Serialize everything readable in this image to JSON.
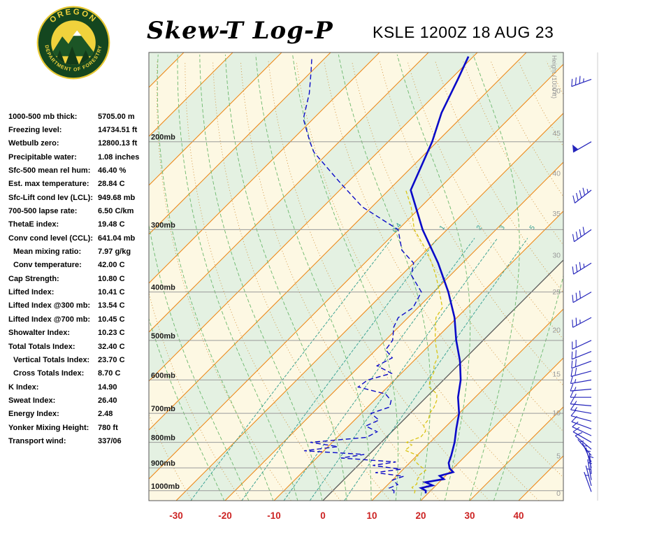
{
  "header": {
    "title": "Skew-T Log-P",
    "station": "KSLE 1200Z 18 AUG 23",
    "logo_text_top": "OREGON",
    "logo_text_bottom": "DEPARTMENT OF FORESTRY"
  },
  "indices": [
    {
      "label": "1000-500 mb thick:",
      "value": "5705.00 m"
    },
    {
      "label": "Freezing level:",
      "value": "14734.51 ft"
    },
    {
      "label": "Wetbulb zero:",
      "value": "12800.13 ft"
    },
    {
      "label": "Precipitable water:",
      "value": "1.08 inches"
    },
    {
      "label": "Sfc-500 mean rel hum:",
      "value": "46.40 %"
    },
    {
      "label": "Est. max temperature:",
      "value": "28.84 C"
    },
    {
      "label": "Sfc-Lift cond lev (LCL):",
      "value": "949.68 mb"
    },
    {
      "label": "700-500 lapse rate:",
      "value": "6.50 C/km"
    },
    {
      "label": "ThetaE index:",
      "value": "19.48 C"
    },
    {
      "label": "Conv cond level (CCL):",
      "value": "641.04 mb"
    },
    {
      "label": "Mean mixing ratio:",
      "value": "7.97 g/kg",
      "indent": true
    },
    {
      "label": "Conv temperature:",
      "value": "42.00 C",
      "indent": true
    },
    {
      "label": "Cap Strength:",
      "value": "10.80 C"
    },
    {
      "label": "Lifted Index:",
      "value": "10.41 C"
    },
    {
      "label": "Lifted Index @300 mb:",
      "value": "13.54 C"
    },
    {
      "label": "Lifted Index @700 mb:",
      "value": "10.45 C"
    },
    {
      "label": "Showalter Index:",
      "value": "10.23 C"
    },
    {
      "label": "Total Totals Index:",
      "value": "32.40 C"
    },
    {
      "label": "Vertical Totals Index:",
      "value": "23.70 C",
      "indent": true
    },
    {
      "label": "Cross Totals Index:",
      "value": "8.70 C",
      "indent": true
    },
    {
      "label": "K Index:",
      "value": "14.90"
    },
    {
      "label": "Sweat Index:",
      "value": "26.40"
    },
    {
      "label": "Energy Index:",
      "value": "2.48"
    },
    {
      "label": "Yonker Mixing Height:",
      "value": "780 ft"
    },
    {
      "label": "Transport wind:",
      "value": "337/06"
    }
  ],
  "chart_data": {
    "type": "skew-t-log-p",
    "pressure_levels_mb": [
      200,
      300,
      400,
      500,
      600,
      700,
      800,
      900,
      1000
    ],
    "pressure_label_suffix": "mb",
    "temp_ticks_c": [
      -30,
      -20,
      -10,
      0,
      10,
      20,
      30,
      40
    ],
    "isotherm_step_c": 10,
    "highlight_isotherm_c": 0,
    "dry_adiabat_step_c": 10,
    "moist_adiabat_start_temps_c": [
      -20,
      -15,
      -10,
      -5,
      0,
      5,
      10,
      15,
      20,
      25,
      30,
      35
    ],
    "mixing_ratio_g_kg": [
      0.4,
      1,
      2,
      3,
      5
    ],
    "height_axis": {
      "title": "Height (1000 ft)",
      "ticks": [
        {
          "label": "50",
          "p_mb": 158
        },
        {
          "label": "45",
          "p_mb": 192
        },
        {
          "label": "40",
          "p_mb": 231
        },
        {
          "label": "35",
          "p_mb": 278
        },
        {
          "label": "30",
          "p_mb": 337
        },
        {
          "label": "25",
          "p_mb": 399
        },
        {
          "label": "20",
          "p_mb": 476
        },
        {
          "label": "15",
          "p_mb": 583
        },
        {
          "label": "10",
          "p_mb": 697
        },
        {
          "label": "5",
          "p_mb": 851
        },
        {
          "label": "0",
          "p_mb": 1010
        }
      ]
    },
    "sounding": {
      "temperature_p_t": [
        [
          1012,
          19.5
        ],
        [
          1000,
          19
        ],
        [
          988,
          17.5
        ],
        [
          976,
          19.3
        ],
        [
          962,
          17.2
        ],
        [
          948,
          20.3
        ],
        [
          934,
          18.8
        ],
        [
          918,
          20.8
        ],
        [
          902,
          19.3
        ],
        [
          880,
          18
        ],
        [
          850,
          17
        ],
        [
          800,
          15
        ],
        [
          750,
          12.5
        ],
        [
          700,
          10
        ],
        [
          650,
          6.5
        ],
        [
          600,
          3.5
        ],
        [
          550,
          -0.5
        ],
        [
          500,
          -5.5
        ],
        [
          450,
          -10.5
        ],
        [
          400,
          -17
        ],
        [
          350,
          -25
        ],
        [
          300,
          -35
        ],
        [
          250,
          -45.5
        ],
        [
          200,
          -51
        ],
        [
          175,
          -55
        ],
        [
          150,
          -58.5
        ],
        [
          135,
          -61
        ]
      ],
      "dewpoint_p_t": [
        [
          1012,
          13
        ],
        [
          1000,
          12.5
        ],
        [
          988,
          11
        ],
        [
          972,
          12
        ],
        [
          952,
          10
        ],
        [
          936,
          11.5
        ],
        [
          920,
          5
        ],
        [
          906,
          9.5
        ],
        [
          890,
          3
        ],
        [
          876,
          7
        ],
        [
          860,
          -5
        ],
        [
          846,
          -1
        ],
        [
          832,
          -14
        ],
        [
          816,
          -8
        ],
        [
          800,
          -14.5
        ],
        [
          782,
          -4
        ],
        [
          762,
          -3
        ],
        [
          742,
          -6.5
        ],
        [
          722,
          -5
        ],
        [
          700,
          -8
        ],
        [
          680,
          -5.5
        ],
        [
          660,
          -6.5
        ],
        [
          640,
          -9
        ],
        [
          620,
          -16
        ],
        [
          600,
          -15.5
        ],
        [
          582,
          -12
        ],
        [
          562,
          -16.5
        ],
        [
          542,
          -15
        ],
        [
          522,
          -18
        ],
        [
          500,
          -18.5
        ],
        [
          470,
          -21
        ],
        [
          450,
          -22
        ],
        [
          430,
          -21
        ],
        [
          400,
          -22.5
        ],
        [
          370,
          -28
        ],
        [
          350,
          -30
        ],
        [
          330,
          -35
        ],
        [
          300,
          -40
        ],
        [
          270,
          -52
        ],
        [
          240,
          -62
        ],
        [
          210,
          -73
        ],
        [
          200,
          -76
        ],
        [
          180,
          -82
        ],
        [
          160,
          -86
        ],
        [
          145,
          -90
        ],
        [
          135,
          -93
        ]
      ],
      "wetbulb_p_t": [
        [
          1012,
          17.2
        ],
        [
          1000,
          16.8
        ],
        [
          985,
          15.5
        ],
        [
          970,
          15.8
        ],
        [
          950,
          15
        ],
        [
          930,
          14.5
        ],
        [
          910,
          14.8
        ],
        [
          890,
          12.5
        ],
        [
          870,
          10.5
        ],
        [
          850,
          10.2
        ],
        [
          830,
          6.5
        ],
        [
          810,
          6.8
        ],
        [
          800,
          5.2
        ],
        [
          780,
          7
        ],
        [
          760,
          6.8
        ],
        [
          740,
          5.2
        ],
        [
          720,
          5
        ],
        [
          700,
          4
        ],
        [
          680,
          3.6
        ],
        [
          660,
          2.8
        ],
        [
          640,
          1.5
        ],
        [
          620,
          -1.5
        ],
        [
          600,
          -2.8
        ],
        [
          580,
          -3.5
        ],
        [
          560,
          -5
        ],
        [
          540,
          -5.8
        ],
        [
          520,
          -7.8
        ],
        [
          500,
          -9.8
        ],
        [
          470,
          -12.5
        ],
        [
          450,
          -14.3
        ],
        [
          430,
          -15
        ],
        [
          400,
          -18.8
        ],
        [
          370,
          -23
        ],
        [
          350,
          -26.3
        ],
        [
          330,
          -30
        ],
        [
          300,
          -36.7
        ],
        [
          270,
          -42
        ],
        [
          250,
          -46.5
        ]
      ]
    },
    "winds_p_dir_spd": [
      [
        1005,
        340,
        5
      ],
      [
        978,
        345,
        5
      ],
      [
        952,
        350,
        5
      ],
      [
        926,
        355,
        5
      ],
      [
        900,
        345,
        5
      ],
      [
        876,
        335,
        5
      ],
      [
        850,
        320,
        5
      ],
      [
        826,
        310,
        10
      ],
      [
        800,
        300,
        10
      ],
      [
        776,
        295,
        10
      ],
      [
        752,
        290,
        10
      ],
      [
        726,
        285,
        10
      ],
      [
        700,
        280,
        15
      ],
      [
        676,
        275,
        15
      ],
      [
        650,
        270,
        15
      ],
      [
        626,
        265,
        15
      ],
      [
        600,
        260,
        15
      ],
      [
        576,
        255,
        20
      ],
      [
        550,
        250,
        20
      ],
      [
        526,
        248,
        20
      ],
      [
        500,
        245,
        20
      ],
      [
        450,
        242,
        25
      ],
      [
        400,
        240,
        30
      ],
      [
        350,
        238,
        35
      ],
      [
        300,
        235,
        40
      ],
      [
        250,
        232,
        45
      ],
      [
        200,
        240,
        50
      ],
      [
        150,
        250,
        35
      ]
    ],
    "colors": {
      "isotherm": "#ee8512",
      "isotherm_zero": "#555555",
      "dry_adiabat": "#d1913c",
      "moist_adiabat": "#6cb86c",
      "mixing_ratio": "#2e9c8e",
      "band_green": "#e4f1e2",
      "band_cream": "#fdf8e3",
      "pressure_line": "#9a9a9a",
      "temp_trace": "#0a0ac8",
      "dewpoint_trace": "#0a0ac8",
      "wetbulb_trace": "#d9c414",
      "wind_barb": "#2424bb",
      "temp_tick": "#cc2222",
      "height_label": "#999999",
      "logo_green": "#14461f",
      "logo_yellow": "#f0d23c"
    }
  }
}
